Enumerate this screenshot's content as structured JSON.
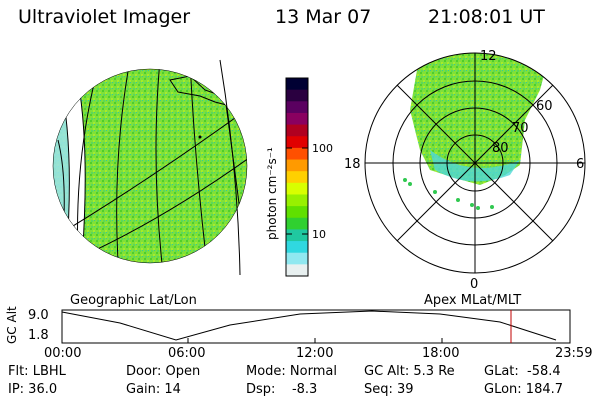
{
  "header": {
    "title": "Ultraviolet Imager",
    "date": "13 Mar 07",
    "time": "21:08:01 UT"
  },
  "colorbar": {
    "unit_label": "photon cm⁻²s⁻¹",
    "ticks": [
      "100",
      "10"
    ],
    "colors": [
      "#000033",
      "#2a0040",
      "#5a0060",
      "#8a0060",
      "#b00020",
      "#e00000",
      "#ff5000",
      "#ff9a00",
      "#ffd000",
      "#d8ff00",
      "#98f000",
      "#60e000",
      "#30d030",
      "#20c8a0",
      "#30d8e0",
      "#90e8f0",
      "#e8f0f0"
    ]
  },
  "left_panel": {
    "caption": "Geographic Lat/Lon"
  },
  "right_panel": {
    "caption": "Apex MLat/MLT",
    "mlt_labels": {
      "top": "12",
      "left": "18",
      "right": "6",
      "bottom": "0"
    },
    "lat_labels": [
      "60",
      "70",
      "80"
    ]
  },
  "timeline": {
    "ylabel": "GC Alt",
    "ymax": "9.0",
    "ymin": "1.8",
    "ticks": [
      "00:00",
      "06:00",
      "12:00",
      "18:00",
      "23:59"
    ],
    "marker_color": "#c00000"
  },
  "info": {
    "flt": "Flt: LBHL",
    "ip": "IP: 36.0",
    "door": "Door: Open",
    "gain": "Gain: 14",
    "mode": "Mode: Normal",
    "dsp": "Dsp:    -8.3",
    "gcalt": "GC Alt: 5.3 Re",
    "seq": "Seq: 39",
    "glat": "GLat:  -58.4",
    "glon": "GLon: 184.7"
  }
}
